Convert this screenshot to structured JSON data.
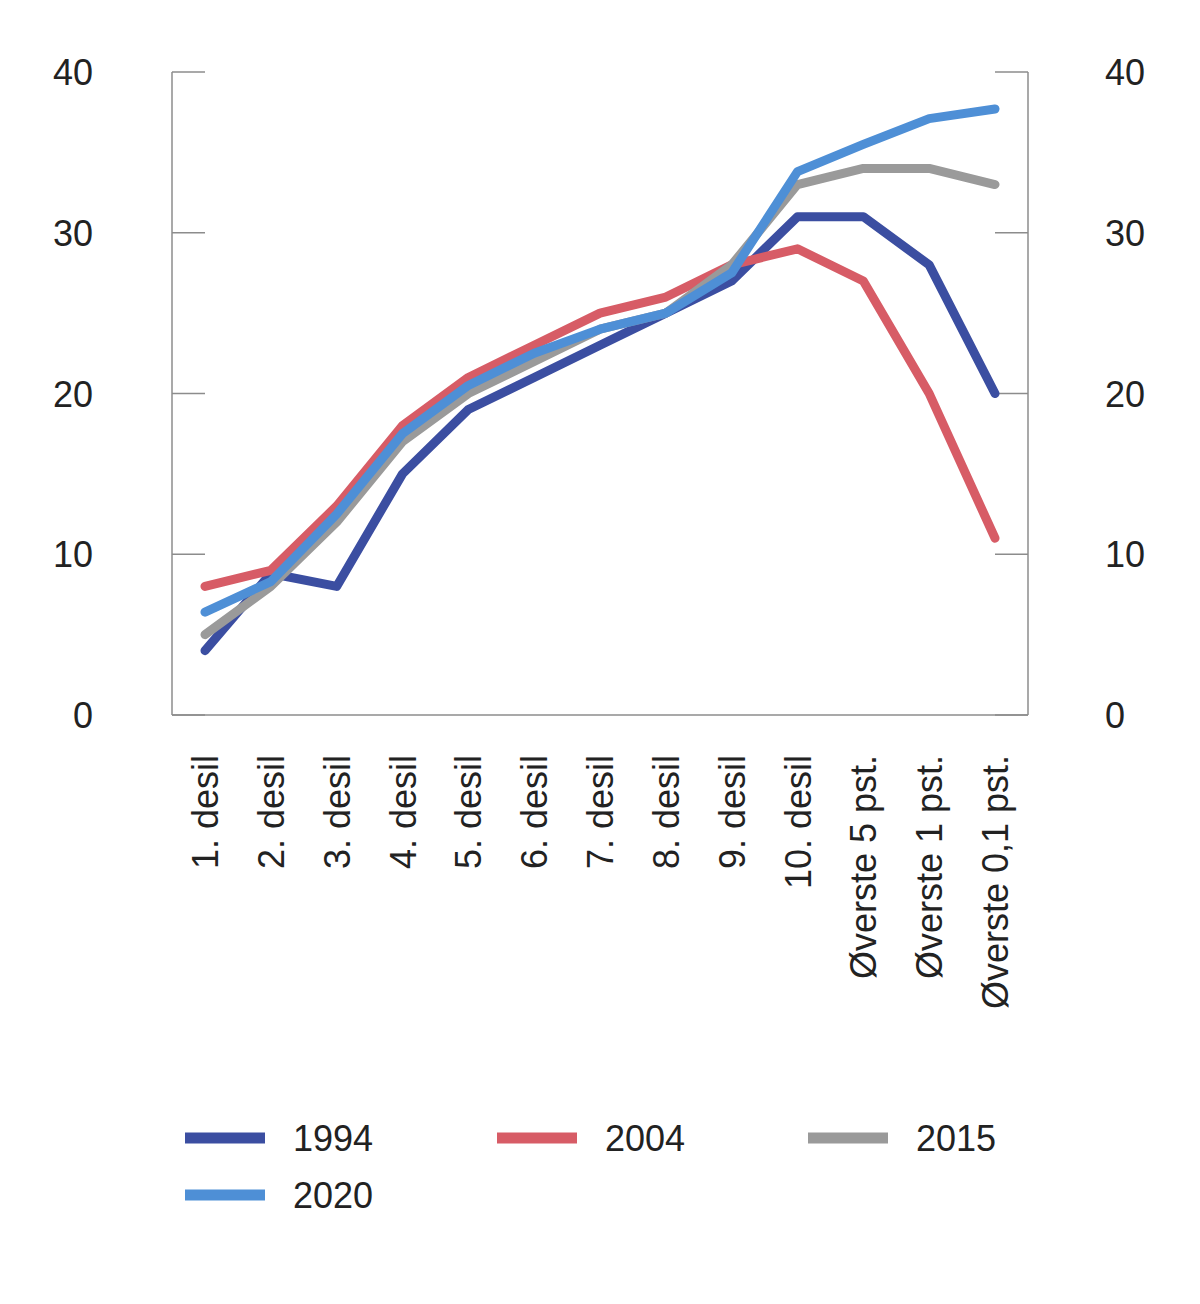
{
  "chart_data": {
    "type": "line",
    "categories": [
      "1. desil",
      "2. desil",
      "3. desil",
      "4. desil",
      "5. desil",
      "6. desil",
      "7. desil",
      "8. desil",
      "9. desil",
      "10. desil",
      "Øverste 5 pst.",
      "Øverste 1 pst.",
      "Øverste 0,1 pst."
    ],
    "series": [
      {
        "name": "1994",
        "color": "#3b4ea1",
        "values": [
          4,
          8.8,
          8,
          15,
          19,
          21,
          23,
          25,
          27,
          31,
          31,
          28,
          20
        ]
      },
      {
        "name": "2004",
        "color": "#d75c66",
        "values": [
          8,
          9,
          13,
          18,
          21,
          23,
          25,
          26,
          28,
          29,
          27,
          20,
          11
        ]
      },
      {
        "name": "2015",
        "color": "#9a9a9a",
        "values": [
          5,
          8,
          12,
          17,
          20,
          22,
          24,
          25,
          28,
          33,
          34,
          34,
          33
        ]
      },
      {
        "name": "2020",
        "color": "#4e8fd6",
        "values": [
          6.4,
          8.3,
          12.5,
          17.5,
          20.5,
          22.5,
          24,
          25,
          27.5,
          33.8,
          35.5,
          37.1,
          37.7
        ]
      }
    ],
    "ylim": [
      0,
      40
    ],
    "yticks": [
      0,
      10,
      20,
      30,
      40
    ],
    "legend": "bottom"
  }
}
